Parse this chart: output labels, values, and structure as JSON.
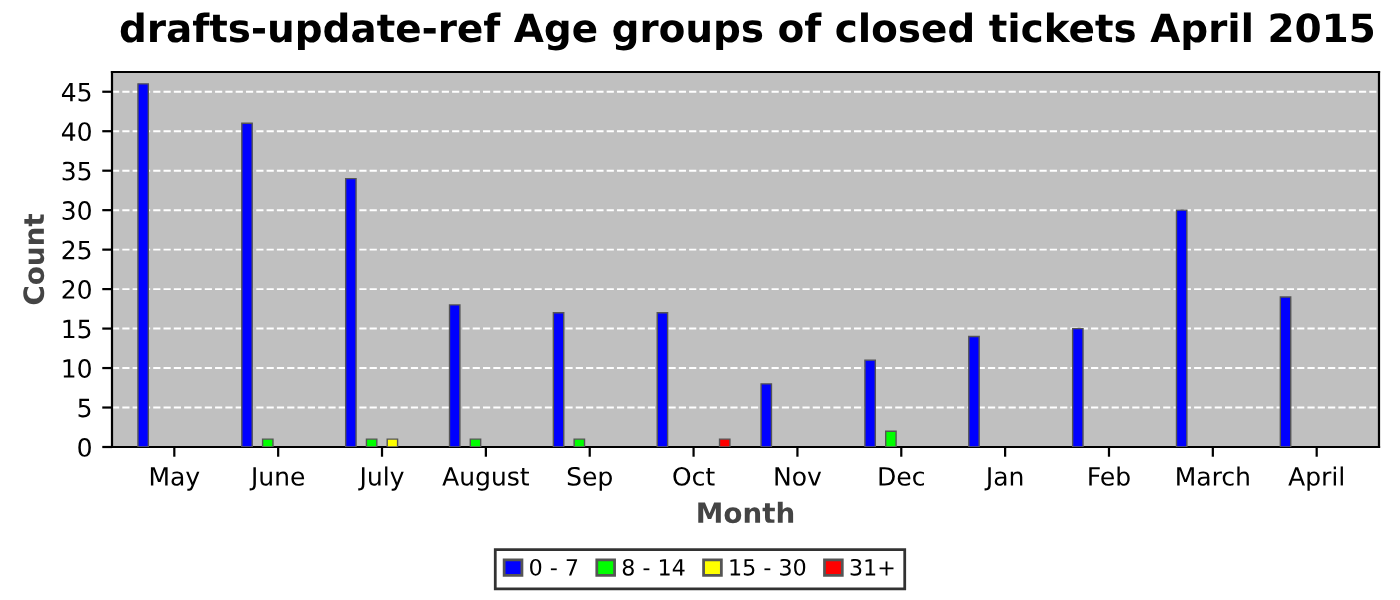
{
  "chart_data": {
    "type": "bar",
    "title": "drafts-update-ref Age groups of closed tickets April 2015",
    "xlabel": "Month",
    "ylabel": "Count",
    "categories": [
      "May",
      "June",
      "July",
      "August",
      "Sep",
      "Oct",
      "Nov",
      "Dec",
      "Jan",
      "Feb",
      "March",
      "April"
    ],
    "series": [
      {
        "name": "0 - 7",
        "color": "#0000ff",
        "values": [
          46,
          41,
          34,
          18,
          17,
          17,
          8,
          11,
          14,
          15,
          30,
          19
        ]
      },
      {
        "name": "8 - 14",
        "color": "#00ff00",
        "values": [
          null,
          1,
          1,
          1,
          1,
          null,
          null,
          2,
          null,
          null,
          null,
          null
        ]
      },
      {
        "name": "15 - 30",
        "color": "#ffff00",
        "values": [
          null,
          null,
          1,
          null,
          null,
          null,
          null,
          null,
          null,
          null,
          null,
          null
        ]
      },
      {
        "name": "31+",
        "color": "#ff0000",
        "values": [
          null,
          null,
          null,
          null,
          null,
          1,
          null,
          null,
          null,
          null,
          null,
          null
        ]
      }
    ],
    "ylim": [
      0,
      47.5
    ],
    "yticks": [
      0,
      5,
      10,
      15,
      20,
      25,
      30,
      35,
      40,
      45
    ],
    "grid": "y",
    "legend": "bottom"
  }
}
